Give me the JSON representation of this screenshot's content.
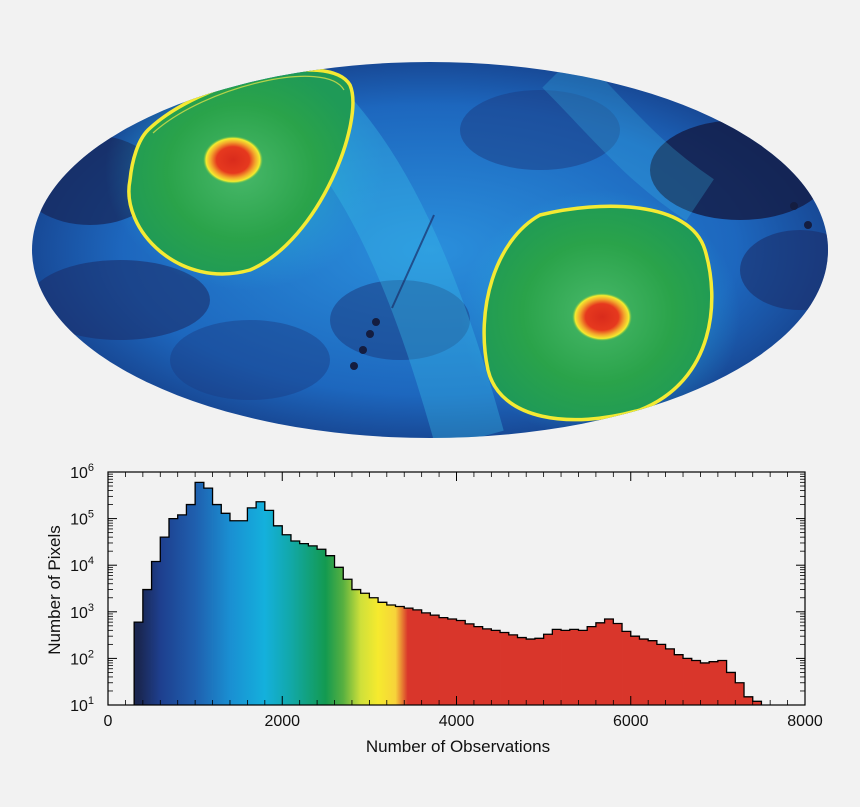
{
  "chart_data": [
    {
      "type": "heatmap",
      "projection": "mollweide all-sky map",
      "colormap": [
        "#1b2a5e",
        "#1f4fa0",
        "#1a8fd6",
        "#27b6e4",
        "#1aa24a",
        "#34b64a",
        "#f3e92a",
        "#e0341f"
      ],
      "features": [
        "two green survey regions outlined by yellow rings",
        "red high-coverage spots at each region center"
      ]
    },
    {
      "type": "bar",
      "style": "step histogram",
      "xlabel": "Number of Observations",
      "ylabel": "Number of Pixels",
      "xlim": [
        0,
        8000
      ],
      "ylim": [
        10,
        1000000
      ],
      "yscale": "log",
      "xticks": [
        "0",
        "2000",
        "4000",
        "6000",
        "8000"
      ],
      "yticks": [
        {
          "base": "10",
          "exp": "1"
        },
        {
          "base": "10",
          "exp": "2"
        },
        {
          "base": "10",
          "exp": "3"
        },
        {
          "base": "10",
          "exp": "4"
        },
        {
          "base": "10",
          "exp": "5"
        },
        {
          "base": "10",
          "exp": "6"
        }
      ],
      "bin_width": 100,
      "x": [
        350,
        450,
        550,
        650,
        750,
        850,
        950,
        1050,
        1150,
        1250,
        1350,
        1450,
        1550,
        1650,
        1750,
        1850,
        1950,
        2050,
        2150,
        2250,
        2350,
        2450,
        2550,
        2650,
        2750,
        2850,
        2950,
        3050,
        3150,
        3250,
        3350,
        3450,
        3550,
        3650,
        3750,
        3850,
        3950,
        4050,
        4150,
        4250,
        4350,
        4450,
        4550,
        4650,
        4750,
        4850,
        4950,
        5050,
        5150,
        5250,
        5350,
        5450,
        5550,
        5650,
        5750,
        5850,
        5950,
        6050,
        6150,
        6250,
        6350,
        6450,
        6550,
        6650,
        6750,
        6850,
        6950,
        7050,
        7150,
        7250,
        7350,
        7450
      ],
      "values": [
        600,
        3000,
        12000,
        40000,
        100000,
        120000,
        200000,
        600000,
        450000,
        200000,
        130000,
        90000,
        90000,
        170000,
        230000,
        150000,
        70000,
        45000,
        33000,
        29000,
        26000,
        22000,
        16000,
        9000,
        5000,
        3000,
        2500,
        2000,
        1600,
        1400,
        1300,
        1200,
        1100,
        950,
        850,
        750,
        700,
        650,
        550,
        480,
        430,
        400,
        360,
        320,
        280,
        260,
        270,
        330,
        420,
        400,
        420,
        400,
        480,
        580,
        700,
        560,
        380,
        300,
        260,
        240,
        200,
        160,
        120,
        100,
        90,
        80,
        85,
        90,
        50,
        30,
        15,
        12
      ],
      "color_stops": [
        {
          "x": 350,
          "color": "#1a2650"
        },
        {
          "x": 600,
          "color": "#1e3f8e"
        },
        {
          "x": 1000,
          "color": "#1f5fae"
        },
        {
          "x": 1400,
          "color": "#1a8fd2"
        },
        {
          "x": 1800,
          "color": "#14b0dc"
        },
        {
          "x": 2100,
          "color": "#12a8a8"
        },
        {
          "x": 2500,
          "color": "#139a50"
        },
        {
          "x": 2700,
          "color": "#58b040"
        },
        {
          "x": 2900,
          "color": "#cfe03a"
        },
        {
          "x": 3100,
          "color": "#f6ea2e"
        },
        {
          "x": 3300,
          "color": "#f7d33a"
        },
        {
          "x": 3440,
          "color": "#d9362b"
        },
        {
          "x": 7600,
          "color": "#d9362b"
        }
      ]
    }
  ]
}
